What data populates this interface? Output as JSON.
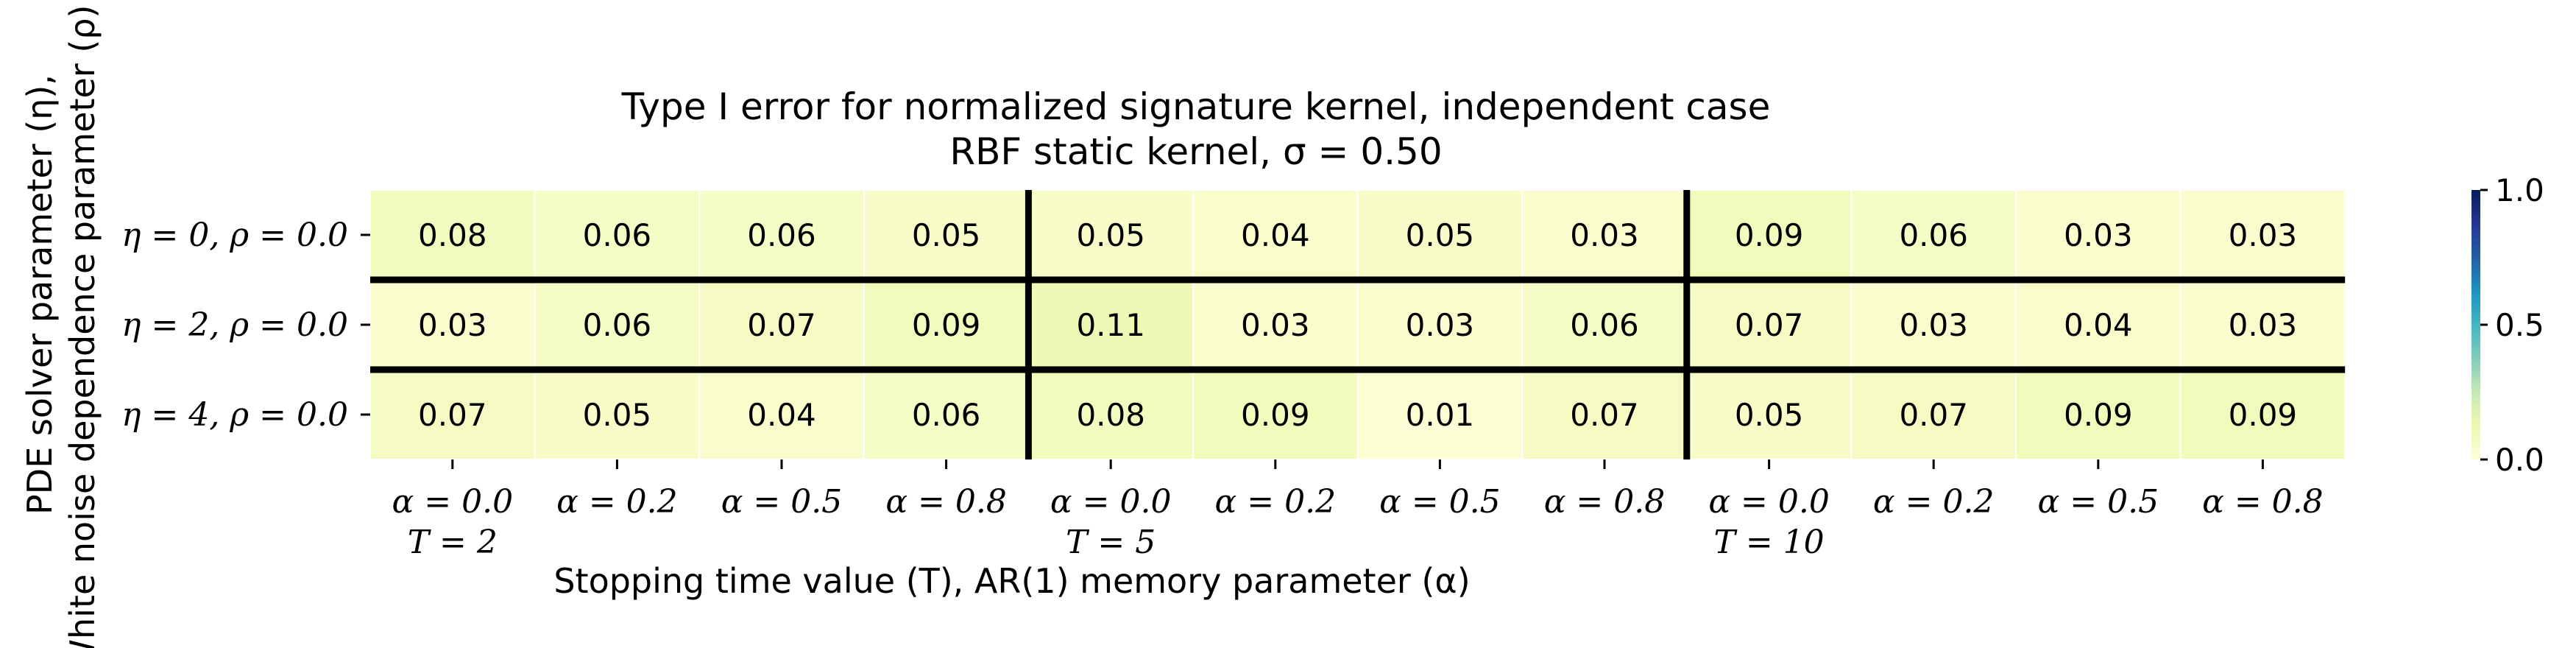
{
  "chart_data": {
    "type": "heatmap",
    "title": "Type I error for normalized signature kernel, independent case",
    "subtitle": "RBF static kernel, σ = 0.50",
    "xlabel": "Stopping time value (T), AR(1) memory parameter (α)",
    "ylabel_line1": "PDE solver parameter (η),",
    "ylabel_line2": "White noise dependence parameter (ρ)",
    "row_labels": [
      "η = 0, ρ = 0.0",
      "η = 2, ρ = 0.0",
      "η = 4, ρ = 0.0"
    ],
    "col_labels": [
      "α = 0.0",
      "α = 0.2",
      "α = 0.5",
      "α = 0.8",
      "α = 0.0",
      "α = 0.2",
      "α = 0.5",
      "α = 0.8",
      "α = 0.0",
      "α = 0.2",
      "α = 0.5",
      "α = 0.8"
    ],
    "col_group_labels": [
      "T = 2",
      "",
      "",
      "",
      "T = 5",
      "",
      "",
      "",
      "T = 10",
      "",
      "",
      ""
    ],
    "values": [
      [
        0.08,
        0.06,
        0.06,
        0.05,
        0.05,
        0.04,
        0.05,
        0.03,
        0.09,
        0.06,
        0.03,
        0.03
      ],
      [
        0.03,
        0.06,
        0.07,
        0.09,
        0.11,
        0.03,
        0.03,
        0.06,
        0.07,
        0.03,
        0.04,
        0.03
      ],
      [
        0.07,
        0.05,
        0.04,
        0.06,
        0.08,
        0.09,
        0.01,
        0.07,
        0.05,
        0.07,
        0.09,
        0.09
      ]
    ],
    "value_labels": [
      [
        "0.08",
        "0.06",
        "0.06",
        "0.05",
        "0.05",
        "0.04",
        "0.05",
        "0.03",
        "0.09",
        "0.06",
        "0.03",
        "0.03"
      ],
      [
        "0.03",
        "0.06",
        "0.07",
        "0.09",
        "0.11",
        "0.03",
        "0.03",
        "0.06",
        "0.07",
        "0.03",
        "0.04",
        "0.03"
      ],
      [
        "0.07",
        "0.05",
        "0.04",
        "0.06",
        "0.08",
        "0.09",
        "0.01",
        "0.07",
        "0.05",
        "0.07",
        "0.09",
        "0.09"
      ]
    ],
    "colorbar": {
      "colormap": "YlGnBu",
      "range": [
        0.0,
        1.0
      ],
      "ticks": [
        0.0,
        0.5,
        1.0
      ],
      "tick_labels": [
        "0.0",
        "0.5",
        "1.0"
      ]
    },
    "group_separators_after_col": [
      4,
      8
    ],
    "row_separators_after_row": [
      1,
      2
    ]
  }
}
